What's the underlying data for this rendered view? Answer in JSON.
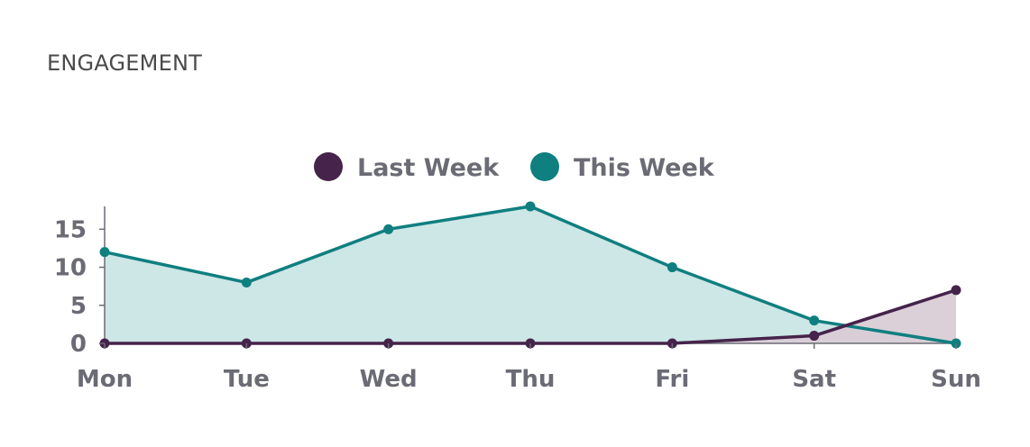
{
  "header": {
    "title": "ENGAGEMENT"
  },
  "chart_data": {
    "type": "area",
    "categories": [
      "Mon",
      "Tue",
      "Wed",
      "Thu",
      "Fri",
      "Sat",
      "Sun"
    ],
    "series": [
      {
        "name": "Last Week",
        "values": [
          0,
          0,
          0,
          0,
          0,
          1,
          7
        ],
        "color": "#45234a",
        "fill": "#d9ccd6"
      },
      {
        "name": "This Week",
        "values": [
          12,
          8,
          15,
          18,
          10,
          3,
          0
        ],
        "color": "#0f7f80",
        "fill": "#cde6e6"
      }
    ],
    "yticks": [
      "0",
      "5",
      "10",
      "15"
    ],
    "ylim": [
      0,
      18
    ],
    "xlabel": "",
    "ylabel": "",
    "legend": "top-center",
    "grid": false
  }
}
